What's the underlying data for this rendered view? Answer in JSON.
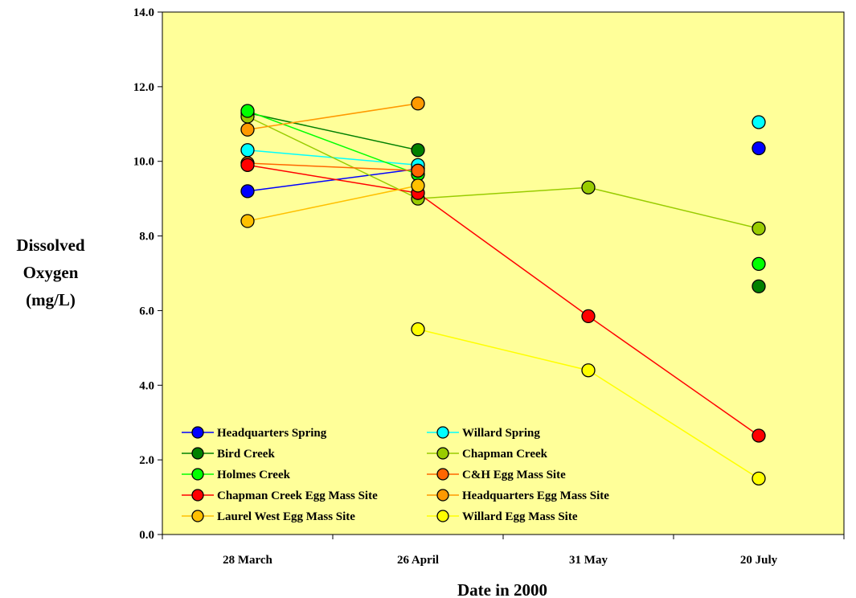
{
  "chart_data": {
    "type": "line",
    "title": "",
    "xlabel": "Date in 2000",
    "ylabel": [
      "Dissolved",
      "Oxygen",
      "(mg/L)"
    ],
    "categories": [
      "28 March",
      "26 April",
      "31 May",
      "20 July"
    ],
    "ylim": [
      0,
      14
    ],
    "yticks": [
      "0.0",
      "2.0",
      "4.0",
      "6.0",
      "8.0",
      "10.0",
      "12.0",
      "14.0"
    ],
    "grid": false,
    "legend_position": "bottom-left",
    "plot_background": "#FFFF99",
    "series": [
      {
        "name": "Headquarters Spring",
        "color": "#0000FF",
        "values": [
          9.2,
          9.8,
          null,
          10.35
        ]
      },
      {
        "name": "Willard Spring",
        "color": "#00FFFF",
        "values": [
          10.3,
          9.9,
          null,
          11.05
        ]
      },
      {
        "name": "Bird Creek",
        "color": "#008000",
        "values": [
          11.3,
          10.3,
          null,
          6.65
        ]
      },
      {
        "name": "Chapman Creek",
        "color": "#99CC00",
        "values": [
          11.2,
          9.0,
          9.3,
          8.2
        ]
      },
      {
        "name": "Holmes Creek",
        "color": "#00FF00",
        "values": [
          11.35,
          9.65,
          null,
          7.25
        ]
      },
      {
        "name": "C&H Egg Mass Site",
        "color": "#FF6600",
        "values": [
          9.95,
          9.75,
          null,
          null
        ]
      },
      {
        "name": "Chapman Creek Egg Mass Site",
        "color": "#FF0000",
        "values": [
          9.9,
          9.15,
          5.85,
          2.65
        ]
      },
      {
        "name": "Headquarters Egg Mass Site",
        "color": "#FF9900",
        "values": [
          10.85,
          11.55,
          null,
          null
        ]
      },
      {
        "name": "Laurel West Egg Mass Site",
        "color": "#FFC000",
        "values": [
          8.4,
          9.35,
          null,
          null
        ]
      },
      {
        "name": "Willard Egg Mass Site",
        "color": "#FFFF00",
        "values": [
          null,
          5.5,
          4.4,
          1.5
        ]
      }
    ]
  }
}
